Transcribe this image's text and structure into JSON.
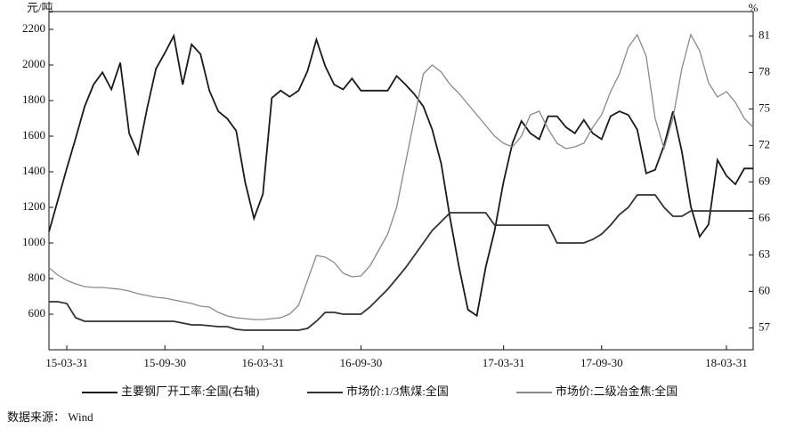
{
  "chart_data": {
    "type": "line",
    "y_unit": "元/吨",
    "y2_unit": "%",
    "source": "数据来源： Wind",
    "categories": [
      null,
      null,
      "15-03-31",
      null,
      null,
      null,
      null,
      null,
      null,
      null,
      null,
      null,
      null,
      "15-09-30",
      null,
      null,
      null,
      null,
      null,
      null,
      null,
      null,
      null,
      null,
      "16-03-31",
      null,
      null,
      null,
      null,
      null,
      null,
      null,
      null,
      null,
      null,
      "16-09-30",
      null,
      null,
      null,
      null,
      null,
      null,
      null,
      null,
      null,
      null,
      null,
      null,
      null,
      null,
      null,
      "17-03-31",
      null,
      null,
      null,
      null,
      null,
      null,
      null,
      null,
      null,
      null,
      "17-09-30",
      null,
      null,
      null,
      null,
      null,
      null,
      null,
      null,
      null,
      null,
      null,
      null,
      null,
      "18-03-31",
      null,
      null,
      null
    ],
    "ylim": [
      400,
      2300
    ],
    "yticks": [
      600,
      800,
      1000,
      1200,
      1400,
      1600,
      1800,
      2000,
      2200
    ],
    "y2lim": [
      55.2,
      83
    ],
    "y2ticks": [
      57,
      60,
      63,
      66,
      69,
      72,
      75,
      78,
      81
    ],
    "legend": "bottom",
    "series": [
      {
        "name": "主要钢厂开工率:全国(右轴)",
        "color": "#1a1a1a",
        "axis": "y2",
        "values": [
          64.9,
          67.5,
          70.1,
          72.6,
          75.2,
          77,
          78,
          76.6,
          78.8,
          73,
          71.3,
          75,
          78.3,
          79.6,
          81,
          77,
          80.3,
          79.5,
          76.5,
          74.8,
          74.2,
          73.2,
          69,
          66,
          68,
          75.9,
          76.5,
          76,
          76.5,
          78.1,
          80.7,
          78.5,
          77,
          76.6,
          77.5,
          76.5,
          76.5,
          76.5,
          76.5,
          77.7,
          77,
          76.2,
          75.2,
          73.3,
          70.5,
          66,
          62,
          58.5,
          58,
          62,
          65,
          69,
          72.2,
          74,
          73,
          72.5,
          74.4,
          74.4,
          73.5,
          73,
          74.1,
          73,
          72.5,
          74.4,
          74.8,
          74.5,
          73.3,
          69.7,
          70,
          72,
          74.8,
          71.5,
          67,
          64.5,
          65.5,
          70.8,
          69.5,
          68.8,
          70.1,
          70.1
        ]
      },
      {
        "name": "市场价:1/3焦煤:全国",
        "color": "#333333",
        "values": [
          670,
          670,
          660,
          580,
          560,
          560,
          560,
          560,
          560,
          560,
          560,
          560,
          560,
          560,
          560,
          550,
          540,
          540,
          535,
          530,
          530,
          515,
          510,
          510,
          510,
          510,
          510,
          510,
          510,
          520,
          560,
          610,
          610,
          600,
          600,
          600,
          640,
          690,
          740,
          800,
          860,
          930,
          1000,
          1070,
          1120,
          1170,
          1170,
          1170,
          1170,
          1170,
          1100,
          1100,
          1100,
          1100,
          1100,
          1100,
          1100,
          1000,
          1000,
          1000,
          1000,
          1020,
          1050,
          1100,
          1160,
          1200,
          1270,
          1270,
          1270,
          1200,
          1150,
          1150,
          1180,
          1180,
          1180,
          1180,
          1180,
          1180,
          1180,
          1180
        ]
      },
      {
        "name": "市场价:二级冶金焦:全国",
        "color": "#8a8a8a",
        "values": [
          860,
          820,
          790,
          770,
          755,
          750,
          750,
          745,
          740,
          730,
          715,
          705,
          695,
          690,
          680,
          670,
          660,
          645,
          640,
          610,
          590,
          580,
          575,
          570,
          570,
          575,
          580,
          600,
          650,
          790,
          930,
          920,
          890,
          830,
          810,
          815,
          870,
          960,
          1050,
          1200,
          1450,
          1700,
          1950,
          2000,
          1960,
          1890,
          1840,
          1780,
          1720,
          1660,
          1600,
          1560,
          1540,
          1600,
          1720,
          1740,
          1640,
          1560,
          1530,
          1540,
          1560,
          1650,
          1720,
          1850,
          1950,
          2100,
          2170,
          2050,
          1700,
          1530,
          1700,
          1980,
          2170,
          2080,
          1900,
          1820,
          1850,
          1790,
          1700,
          1650
        ]
      }
    ]
  }
}
